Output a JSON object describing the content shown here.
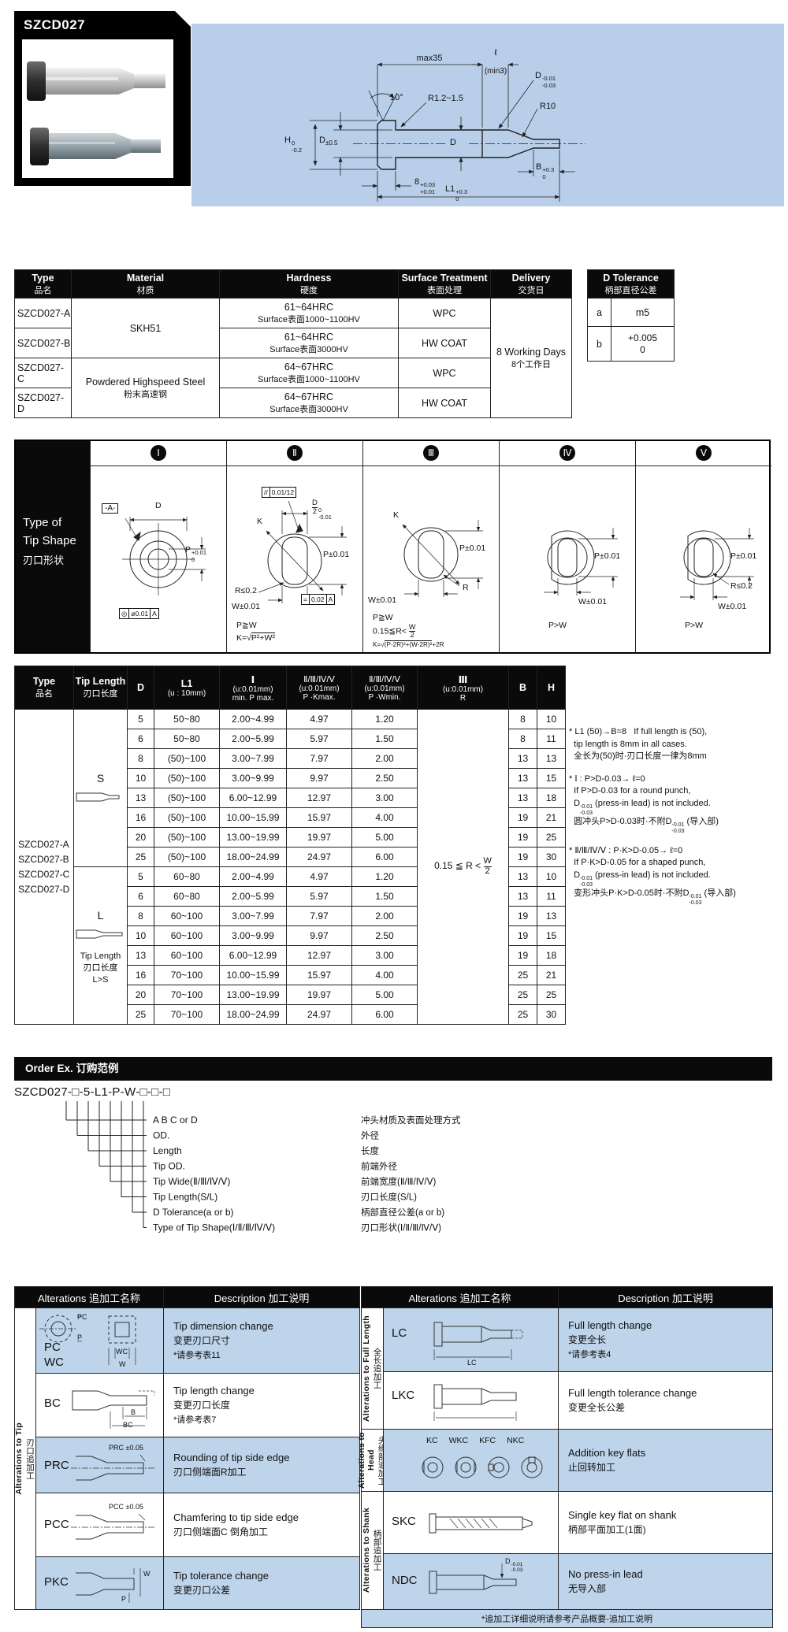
{
  "colors": {
    "drawing_bg": "#b9cfe9",
    "alt_row_blue": "#bdd4ea",
    "header_bg": "#0a0a0a"
  },
  "product": {
    "code": "SZCD027"
  },
  "drawing": {
    "max35": "max35",
    "ell": "ℓ",
    "min3": "(min3)",
    "angle": "10°",
    "r_fillet": "R1.2~1.5",
    "d_lead": "D",
    "d_lead_hi": "-0.01",
    "d_lead_lo": "-0.03",
    "r10": "R10",
    "h": "H",
    "h_hi": "0",
    "h_lo": "-0.2",
    "d_head": "D",
    "d_head_tol": "±0.5",
    "d_shank": "D",
    "b": "B",
    "b_hi": "+0.3",
    "b_lo": "0",
    "head_t": "8",
    "head_t_hi": "+0.03",
    "head_t_lo": "+0.01",
    "l1": "L1",
    "l1_hi": "+0.3",
    "l1_lo": "0"
  },
  "spec_table": {
    "headers": [
      [
        "Type",
        "品名"
      ],
      [
        "Material",
        "材质"
      ],
      [
        "Hardness",
        "硬度"
      ],
      [
        "Surface Treatment",
        "表面处理"
      ],
      [
        "Delivery",
        "交货日"
      ]
    ],
    "rows": [
      {
        "type": "SZCD027-A",
        "hard1": "61~64HRC",
        "hard2": "Surface表面1000~1100HV",
        "treat": "WPC"
      },
      {
        "type": "SZCD027-B",
        "hard1": "61~64HRC",
        "hard2": "Surface表面3000HV",
        "treat": "HW COAT"
      },
      {
        "type": "SZCD027-C",
        "hard1": "64~67HRC",
        "hard2": "Surface表面1000~1100HV",
        "treat": "WPC"
      },
      {
        "type": "SZCD027-D",
        "hard1": "64~67HRC",
        "hard2": "Surface表面3000HV",
        "treat": "HW COAT"
      }
    ],
    "material_ab": "SKH51",
    "material_cd1": "Powdered Highspeed Steel",
    "material_cd2": "粉末高速钢",
    "delivery1": "8 Working Days",
    "delivery2": "8个工作日"
  },
  "d_tolerance": {
    "title1": "D  Tolerance",
    "title2": "柄部直径公差",
    "row_a_key": "a",
    "row_a_val": "m5",
    "row_b_key": "b",
    "row_b_hi": "+0.005",
    "row_b_lo": "0"
  },
  "tip_shape": {
    "label1": "Type of",
    "label2": "Tip Shape",
    "label3": "刃口形状",
    "numerals": [
      "Ⅰ",
      "Ⅱ",
      "Ⅲ",
      "Ⅳ",
      "Ⅴ"
    ],
    "c1": {
      "datum": "-A-",
      "d": "D",
      "p": "P",
      "p_hi": "+0.01",
      "p_lo": "0",
      "fcf1": "◎",
      "fcf2": "ø0.01",
      "fcf3": "A"
    },
    "c2": {
      "fcfa1": "//",
      "fcfa2": "0.01/12",
      "dnum": "D",
      "dden": "2",
      "d_hi": "0",
      "d_lo": "-0.01",
      "k": "K",
      "r": "R≤0.2",
      "p": "P±0.01",
      "w": "W±0.01",
      "fcfb1": "=",
      "fcfb2": "0.02",
      "fcfb3": "A",
      "f1": "P≧W",
      "f2pre": "K=√",
      "f2rad": "P²+W²"
    },
    "c3": {
      "k": "K",
      "p": "P±0.01",
      "r": "R",
      "w": "W±0.01",
      "f1": "P≧W",
      "f2": "0.15≦R<",
      "f2num": "W",
      "f2den": "2",
      "f3pre": "K=√",
      "f3rad": "(P-2R)²+(W-2R)²",
      "f3post": "+2R"
    },
    "c4": {
      "p": "P±0.01",
      "w": "W±0.01",
      "f": "P>W"
    },
    "c5": {
      "p": "P±0.01",
      "r": "R≤0.2",
      "w": "W±0.01",
      "f": "P>W"
    }
  },
  "dim_table": {
    "h_type": [
      "Type",
      "品名"
    ],
    "h_tip": [
      "Tip Length",
      "刃口长度"
    ],
    "h_d": "D",
    "h_l1": [
      "L1",
      "(u : 10mm)"
    ],
    "h_i": [
      "Ⅰ",
      "(u:0.01mm)",
      "min. P max."
    ],
    "h_k": [
      "Ⅱ/Ⅲ/Ⅳ/Ⅴ",
      "(u:0.01mm)",
      "P ·Kmax."
    ],
    "h_w": [
      "Ⅱ/Ⅲ/Ⅳ/Ⅴ",
      "(u:0.01mm)",
      "P ·Wmin."
    ],
    "h_r": [
      "Ⅲ",
      "(u:0.01mm)",
      "R"
    ],
    "h_b": "B",
    "h_h": "H",
    "types": [
      "SZCD027-A",
      "SZCD027-B",
      "SZCD027-C",
      "SZCD027-D"
    ],
    "s_label": "S",
    "l_label": "L",
    "l_note": [
      "Tip Length",
      "刃口长度",
      "L>S"
    ],
    "r_text": "0.15 ≦ R <",
    "r_num": "W",
    "r_den": "2",
    "s_rows": [
      [
        "5",
        "50~80",
        "2.00~4.99",
        "4.97",
        "1.20",
        "8",
        "10"
      ],
      [
        "6",
        "50~80",
        "2.00~5.99",
        "5.97",
        "1.50",
        "8",
        "11"
      ],
      [
        "8",
        "(50)~100",
        "3.00~7.99",
        "7.97",
        "2.00",
        "13",
        "13"
      ],
      [
        "10",
        "(50)~100",
        "3.00~9.99",
        "9.97",
        "2.50",
        "13",
        "15"
      ],
      [
        "13",
        "(50)~100",
        "6.00~12.99",
        "12.97",
        "3.00",
        "13",
        "18"
      ],
      [
        "16",
        "(50)~100",
        "10.00~15.99",
        "15.97",
        "4.00",
        "19",
        "21"
      ],
      [
        "20",
        "(50)~100",
        "13.00~19.99",
        "19.97",
        "5.00",
        "19",
        "25"
      ],
      [
        "25",
        "(50)~100",
        "18.00~24.99",
        "24.97",
        "6.00",
        "19",
        "30"
      ]
    ],
    "l_rows": [
      [
        "5",
        "60~80",
        "2.00~4.99",
        "4.97",
        "1.20",
        "13",
        "10"
      ],
      [
        "6",
        "60~80",
        "2.00~5.99",
        "5.97",
        "1.50",
        "13",
        "11"
      ],
      [
        "8",
        "60~100",
        "3.00~7.99",
        "7.97",
        "2.00",
        "19",
        "13"
      ],
      [
        "10",
        "60~100",
        "3.00~9.99",
        "9.97",
        "2.50",
        "19",
        "15"
      ],
      [
        "13",
        "60~100",
        "6.00~12.99",
        "12.97",
        "3.00",
        "19",
        "18"
      ],
      [
        "16",
        "70~100",
        "10.00~15.99",
        "15.97",
        "4.00",
        "25",
        "21"
      ],
      [
        "20",
        "70~100",
        "13.00~19.99",
        "19.97",
        "5.00",
        "25",
        "25"
      ],
      [
        "25",
        "70~100",
        "18.00~24.99",
        "24.97",
        "6.00",
        "25",
        "30"
      ]
    ]
  },
  "notes": [
    {
      "lines": [
        [
          "* L1 (50)→B=8   If full length is (50),"
        ],
        [
          "  tip length is 8mm in all cases."
        ],
        [
          "  全长为(50)时·刃口长度一律为8mm"
        ]
      ]
    },
    {
      "lines": [
        [
          "* Ⅰ : P>D-0.03→ ℓ=0"
        ],
        [
          "  If P>D-0.03 for a round punch,"
        ],
        [
          "  D",
          {
            "tol": [
              "-0.01",
              "-0.03"
            ]
          },
          " (press-in lead) is not included."
        ],
        [
          "  圆冲头P>D-0.03时·不附D",
          {
            "tol": [
              "-0.01",
              "-0.03"
            ]
          },
          " (导入部)"
        ]
      ]
    },
    {
      "lines": [
        [
          "* Ⅱ/Ⅲ/Ⅳ/Ⅴ : P·K>D-0.05→ ℓ=0"
        ],
        [
          "  If P·K>D-0.05 for a shaped punch,"
        ],
        [
          "  D",
          {
            "tol": [
              "-0.01",
              "-0.03"
            ]
          },
          " (press-in lead) is not included."
        ],
        [
          "  变形冲头P·K>D-0.05时·不附D",
          {
            "tol": [
              "-0.01",
              "-0.03"
            ]
          },
          " (导入部)"
        ]
      ]
    }
  ],
  "order": {
    "bar": "Order Ex.  订购范例",
    "code": "SZCD027-□-5-L1-P-W-□-□-□",
    "items": [
      [
        "A B C or D",
        "冲头材质及表面处理方式"
      ],
      [
        "OD.",
        "外径"
      ],
      [
        "Length",
        "长度"
      ],
      [
        "Tip OD.",
        "前端外径"
      ],
      [
        "Tip Wide(Ⅱ/Ⅲ/Ⅳ/Ⅴ)",
        "前端宽度(Ⅱ/Ⅲ/Ⅳ/Ⅴ)"
      ],
      [
        "Tip Length(S/L)",
        "刃口长度(S/L)"
      ],
      [
        "D Tolerance(a or b)",
        "柄部直径公差(a or b)"
      ],
      [
        "Type of Tip Shape(Ⅰ/Ⅱ/Ⅲ/Ⅳ/Ⅴ)",
        "刃口形状(Ⅰ/Ⅱ/Ⅲ/Ⅳ/Ⅴ)"
      ]
    ]
  },
  "alterations": {
    "hdr_alt": "Alterations 追加工名称",
    "hdr_desc": "Description 加工说明",
    "left_group_en": "Alterations to Tip",
    "left_group_zh": "刃口追加工",
    "left": [
      {
        "code1": "PC",
        "code2": "WC",
        "d1": "Tip dimension change",
        "d2": "变更刃口尺寸",
        "d3": "*请参考表11",
        "lab_pc": "PC",
        "lab_p": "P",
        "lab_wc": "WC",
        "lab_w": "W"
      },
      {
        "code1": "BC",
        "d1": "Tip length change",
        "d2": "变更刃口长度",
        "d3": "*请参考表7",
        "lab_b": "B",
        "lab_bc": "BC"
      },
      {
        "code1": "PRC",
        "d1": "Rounding of tip side edge",
        "d2": "刃口侧端面R加工",
        "lab_dim": "PRC ±0.05"
      },
      {
        "code1": "PCC",
        "d1": "Chamfering to tip side edge",
        "d2": "刃口侧端面C 倒角加工",
        "lab_dim": "PCC ±0.05"
      },
      {
        "code1": "PKC",
        "d1": "Tip tolerance change",
        "d2": "变更刃口公差",
        "lab_w": "W",
        "lab_p": "P"
      }
    ],
    "right_groups": [
      {
        "en": "Alterations to Full Length",
        "zh": "全长追加工"
      },
      {
        "en": "Alterations to Head",
        "zh": "头缘部追加工"
      },
      {
        "en": "Alterations to Shank",
        "zh": "柄部追加工"
      }
    ],
    "right": [
      {
        "code": "LC",
        "d1": "Full length change",
        "d2": "变更全长",
        "d3": "*请参考表4",
        "lab": "LC"
      },
      {
        "code": "LKC",
        "d1": "Full length tolerance change",
        "d2": "变更全长公差"
      },
      {
        "codes": [
          "KC",
          "WKC",
          "KFC",
          "NKC"
        ],
        "d1": "Addition key flats",
        "d2": "止回转加工"
      },
      {
        "code": "SKC",
        "d1": "Single key flat on shank",
        "d2": "柄部平面加工(1面)"
      },
      {
        "code": "NDC",
        "d1": "No press-in lead",
        "d2": "无导入部",
        "lab_d": "D",
        "lab_hi": "-0.01",
        "lab_lo": "-0.03"
      }
    ],
    "footnote": "*追加工详细说明请参考产品概要-追加工说明"
  }
}
